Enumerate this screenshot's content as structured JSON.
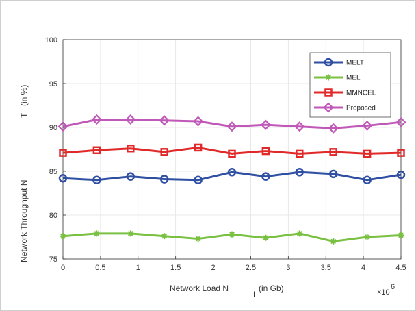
{
  "chart_data": {
    "type": "line",
    "x": [
      0,
      0.45,
      0.9,
      1.35,
      1.8,
      2.25,
      2.7,
      3.15,
      3.6,
      4.05,
      4.5
    ],
    "xlim": [
      0,
      4.5
    ],
    "ylim": [
      75,
      100
    ],
    "xticks": [
      "0",
      "0.5",
      "1",
      "1.5",
      "2",
      "2.5",
      "3",
      "3.5",
      "4",
      "4.5"
    ],
    "yticks": [
      "75",
      "80",
      "85",
      "90",
      "95",
      "100"
    ],
    "xlabel_main": "Network Load N",
    "xlabel_sub": "L",
    "xlabel_unit": "(in Gb)",
    "ylabel_main": "Network Throughput N",
    "ylabel_sub": "T",
    "ylabel_unit": "(in %)",
    "x_multiplier": "×10",
    "x_multiplier_exp": "6",
    "grid": true,
    "legend_position": "top-right",
    "series": [
      {
        "name": "MELT",
        "color": "#2f4fa3",
        "marker": "circle",
        "values": [
          84.2,
          84.0,
          84.4,
          84.1,
          84.0,
          84.9,
          84.4,
          84.9,
          84.7,
          84.0,
          84.6
        ]
      },
      {
        "name": "MEL",
        "color": "#7ac143",
        "marker": "star",
        "values": [
          77.6,
          77.9,
          77.9,
          77.6,
          77.3,
          77.8,
          77.4,
          77.9,
          77.0,
          77.5,
          77.7
        ]
      },
      {
        "name": "MMNCEL",
        "color": "#e02a2a",
        "marker": "square",
        "values": [
          87.1,
          87.4,
          87.6,
          87.2,
          87.7,
          87.0,
          87.3,
          87.0,
          87.2,
          87.0,
          87.1
        ]
      },
      {
        "name": "Proposed",
        "color": "#c058b8",
        "marker": "diamond",
        "values": [
          90.1,
          90.9,
          90.9,
          90.8,
          90.7,
          90.1,
          90.3,
          90.1,
          89.9,
          90.2,
          90.6
        ]
      }
    ]
  }
}
